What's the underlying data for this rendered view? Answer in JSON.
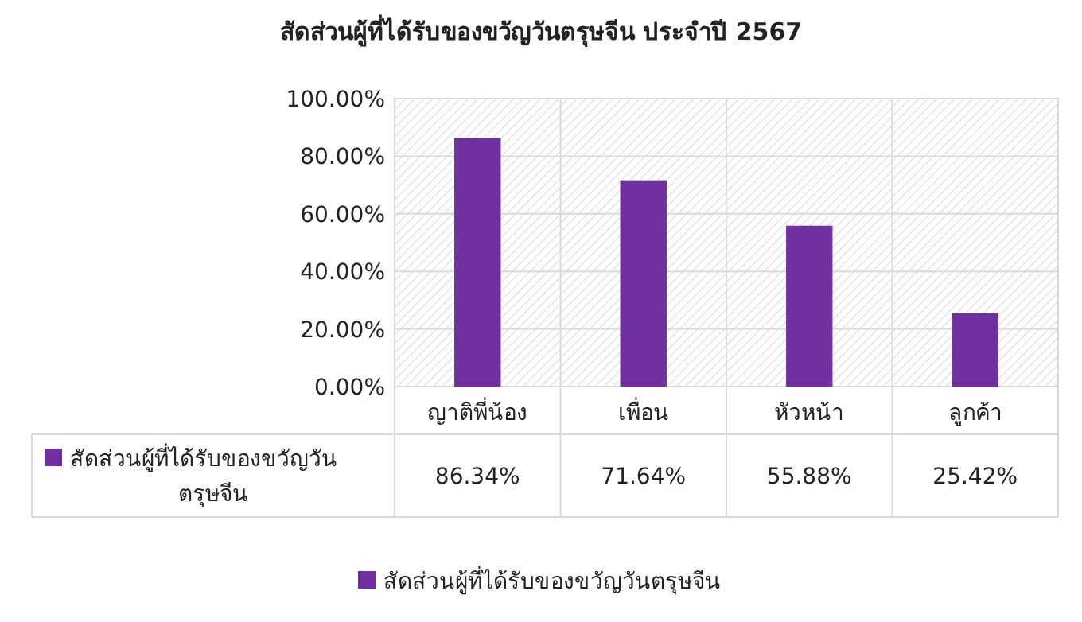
{
  "chart_data": {
    "type": "bar",
    "title": "สัดส่วนผู้ที่ได้รับของขวัญวันตรุษจีน ประจำปี 2567",
    "categories": [
      "ญาติพี่น้อง",
      "เพื่อน",
      "หัวหน้า",
      "ลูกค้า"
    ],
    "series": [
      {
        "name": "สัดส่วนผู้ที่ได้รับของขวัญวันตรุษจีน",
        "color": "#7030a0",
        "values": [
          86.34,
          71.64,
          55.88,
          25.42
        ],
        "value_labels": [
          "86.34%",
          "71.64%",
          "55.88%",
          "25.42%"
        ]
      }
    ],
    "ylim": [
      0,
      100
    ],
    "yticks": [
      {
        "value": 0,
        "label": "0.00%"
      },
      {
        "value": 20,
        "label": "20.00%"
      },
      {
        "value": 40,
        "label": "40.00%"
      },
      {
        "value": 60,
        "label": "60.00%"
      },
      {
        "value": 80,
        "label": "80.00%"
      },
      {
        "value": 100,
        "label": "100.00%"
      }
    ],
    "grid": "y",
    "legend": "bottom"
  }
}
